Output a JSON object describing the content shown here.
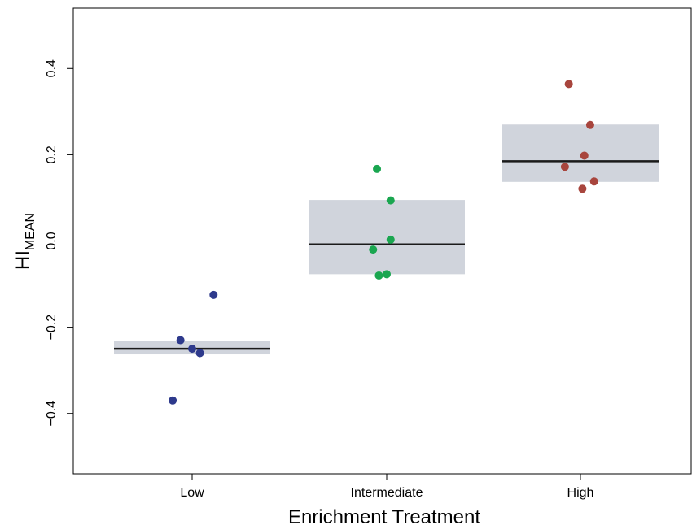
{
  "chart_data": {
    "type": "scatter",
    "xlabel": "Enrichment Treatment",
    "ylabel": "HI",
    "ylabel_subscript": "MEAN",
    "ylim": [
      -0.54,
      0.54
    ],
    "yticks": [
      -0.4,
      -0.2,
      0.0,
      0.2,
      0.4
    ],
    "ytick_labels": [
      "−0.4",
      "−0.2",
      "0.0",
      "0.2",
      "0.4"
    ],
    "grid": false,
    "reference_line": {
      "y": 0.0,
      "style": "dashed",
      "color": "#b0b0b0"
    },
    "categories": [
      "Low",
      "Intermediate",
      "High"
    ],
    "groups": [
      {
        "category": "Low",
        "color": "#2e3a8c",
        "mean": -0.25,
        "interval": [
          -0.263,
          -0.232
        ],
        "points": [
          {
            "jitter": 0.11,
            "y": -0.125
          },
          {
            "jitter": -0.06,
            "y": -0.23
          },
          {
            "jitter": 0.0,
            "y": -0.25
          },
          {
            "jitter": 0.04,
            "y": -0.26
          },
          {
            "jitter": -0.1,
            "y": -0.37
          }
        ]
      },
      {
        "category": "Intermediate",
        "color": "#1aa650",
        "mean": -0.008,
        "interval": [
          -0.077,
          0.095
        ],
        "points": [
          {
            "jitter": -0.05,
            "y": 0.167
          },
          {
            "jitter": 0.02,
            "y": 0.094
          },
          {
            "jitter": 0.02,
            "y": 0.003
          },
          {
            "jitter": -0.07,
            "y": -0.02
          },
          {
            "jitter": -0.04,
            "y": -0.08
          },
          {
            "jitter": 0.0,
            "y": -0.077
          }
        ]
      },
      {
        "category": "High",
        "color": "#a8453d",
        "mean": 0.185,
        "interval": [
          0.137,
          0.27
        ],
        "points": [
          {
            "jitter": -0.06,
            "y": 0.364
          },
          {
            "jitter": 0.05,
            "y": 0.269
          },
          {
            "jitter": 0.02,
            "y": 0.198
          },
          {
            "jitter": -0.08,
            "y": 0.172
          },
          {
            "jitter": 0.07,
            "y": 0.138
          },
          {
            "jitter": 0.01,
            "y": 0.121
          }
        ]
      }
    ],
    "colors": {
      "interval_fill": "#d0d4dc",
      "mean_line": "#1a1a1a",
      "axis": "#000000"
    }
  }
}
